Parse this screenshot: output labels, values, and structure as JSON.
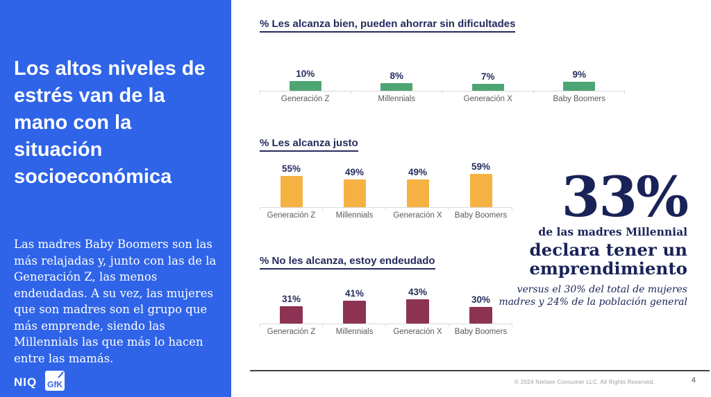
{
  "colors": {
    "sidebar_blue": "#2F64E8",
    "navy_text": "#252B5C",
    "callout_navy": "#1A2357",
    "green": "#4DA573",
    "yellow": "#F5B243",
    "maroon": "#8C3353",
    "category_gray": "#595959",
    "axis_gray": "#D9D9D9"
  },
  "sidebar": {
    "title": "Los altos niveles de estrés van de la mano con la situación socioeconómica",
    "body": "Las madres Baby Boomers son las más relajadas y, junto con las de la Generación Z, las menos endeudadas. A su vez, las mujeres que son madres son el grupo que más emprende, siendo las Millennials las que más lo hacen entre las mamás.",
    "logo_niq": "NIQ",
    "logo_gfk": "GfK"
  },
  "chart_data": [
    {
      "type": "bar",
      "title": "% Les alcanza bien, pueden ahorrar sin dificultades",
      "categories": [
        "Generación Z",
        "Millennials",
        "Generación X",
        "Baby Boomers"
      ],
      "values": [
        10,
        8,
        7,
        9
      ],
      "value_labels": [
        "10%",
        "8%",
        "7%",
        "9%"
      ],
      "bar_color": "#4DA573",
      "ylim": [
        0,
        100
      ],
      "grid": false,
      "legend": "none"
    },
    {
      "type": "bar",
      "title": "% Les alcanza justo",
      "categories": [
        "Generación Z",
        "Millennials",
        "Generación X",
        "Baby Boomers"
      ],
      "values": [
        55,
        49,
        49,
        59
      ],
      "value_labels": [
        "55%",
        "49%",
        "49%",
        "59%"
      ],
      "bar_color": "#F5B243",
      "ylim": [
        0,
        100
      ],
      "grid": false,
      "legend": "none"
    },
    {
      "type": "bar",
      "title": "% No les alcanza, estoy endeudado",
      "categories": [
        "Generación Z",
        "Millennials",
        "Generación X",
        "Baby Boomers"
      ],
      "values": [
        31,
        41,
        43,
        30
      ],
      "value_labels": [
        "31%",
        "41%",
        "43%",
        "30%"
      ],
      "bar_color": "#8C3353",
      "ylim": [
        0,
        100
      ],
      "grid": false,
      "legend": "none"
    }
  ],
  "callout": {
    "stat": "33%",
    "line1": "de las madres Millennial",
    "line2": "declara tener un emprendimiento",
    "note": "versus el 30% del total de mujeres madres y 24% de la población general"
  },
  "footer": {
    "copyright": "© 2024 Nielsen Consumer LLC. All Rights Reserved.",
    "page_number": "4"
  }
}
